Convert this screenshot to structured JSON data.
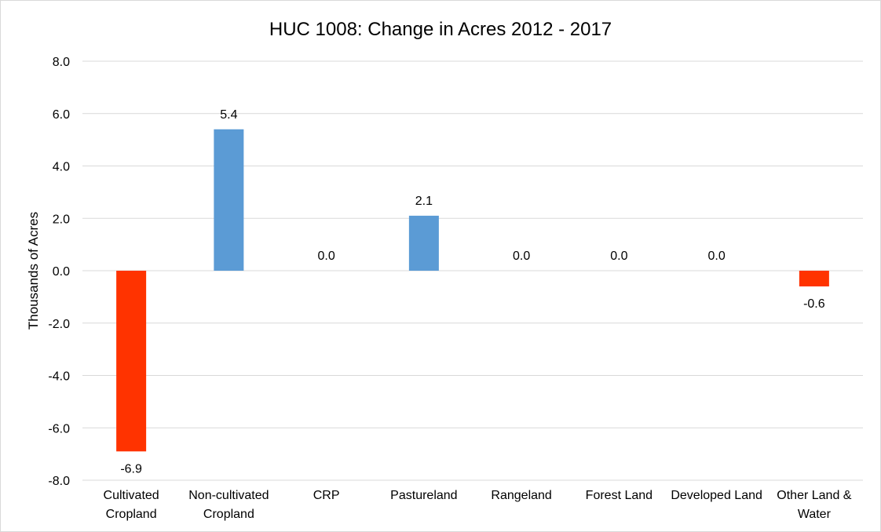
{
  "chart_data": {
    "type": "bar",
    "title": "HUC 1008: Change in Acres 2012 - 2017",
    "xlabel": "",
    "ylabel": "Thousands of Acres",
    "ylim": [
      -8,
      8
    ],
    "y_ticks": [
      "8.0",
      "6.0",
      "4.0",
      "2.0",
      "0.0",
      "-2.0",
      "-4.0",
      "-6.0",
      "-8.0"
    ],
    "y_tick_values": [
      8,
      6,
      4,
      2,
      0,
      -2,
      -4,
      -6,
      -8
    ],
    "grid": true,
    "legend": "none",
    "categories": [
      [
        "Cultivated",
        "Cropland"
      ],
      [
        "Non-cultivated",
        "Cropland"
      ],
      [
        "CRP"
      ],
      [
        "Pastureland"
      ],
      [
        "Rangeland"
      ],
      [
        "Forest Land"
      ],
      [
        "Developed Land"
      ],
      [
        "Other Land &",
        "Water"
      ]
    ],
    "values": [
      -6.9,
      5.4,
      0.0,
      2.1,
      0.0,
      0.0,
      0.0,
      -0.6
    ],
    "data_labels": [
      "-6.9",
      "5.4",
      "0.0",
      "2.1",
      "0.0",
      "0.0",
      "0.0",
      "-0.6"
    ],
    "colors": {
      "positive": "#5b9bd5",
      "negative": "#ff3300",
      "grid": "#d9d9d9"
    }
  }
}
